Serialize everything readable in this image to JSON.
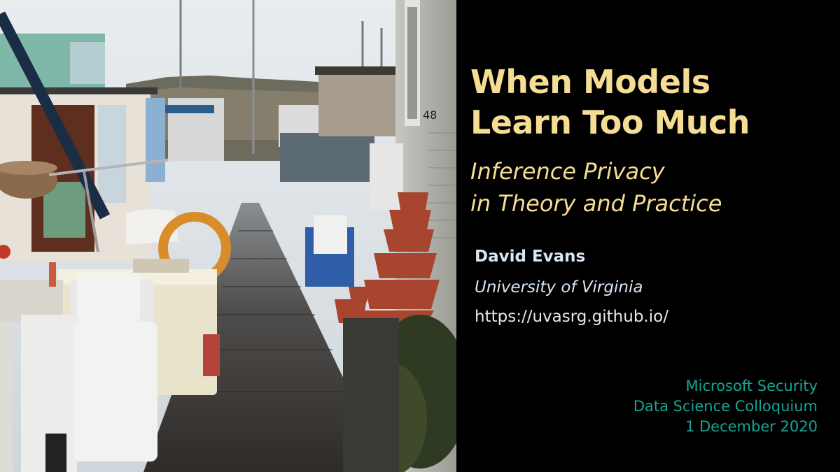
{
  "slide": {
    "title_line1": "When Models",
    "title_line2": "Learn Too Much",
    "subtitle_line1": "Inference Privacy",
    "subtitle_line2": "in Theory and Practice",
    "author": "David Evans",
    "affiliation": "University of Virginia",
    "url": "https://uvasrg.github.io/",
    "venue_line1": "Microsoft Security",
    "venue_line2": "Data Science Colloquium",
    "venue_line3": "1 December 2020"
  },
  "photo": {
    "house_number": "48"
  },
  "colors": {
    "title": "#f5dd93",
    "author": "#d7e6f5",
    "venue": "#17a595",
    "background": "#000000"
  }
}
